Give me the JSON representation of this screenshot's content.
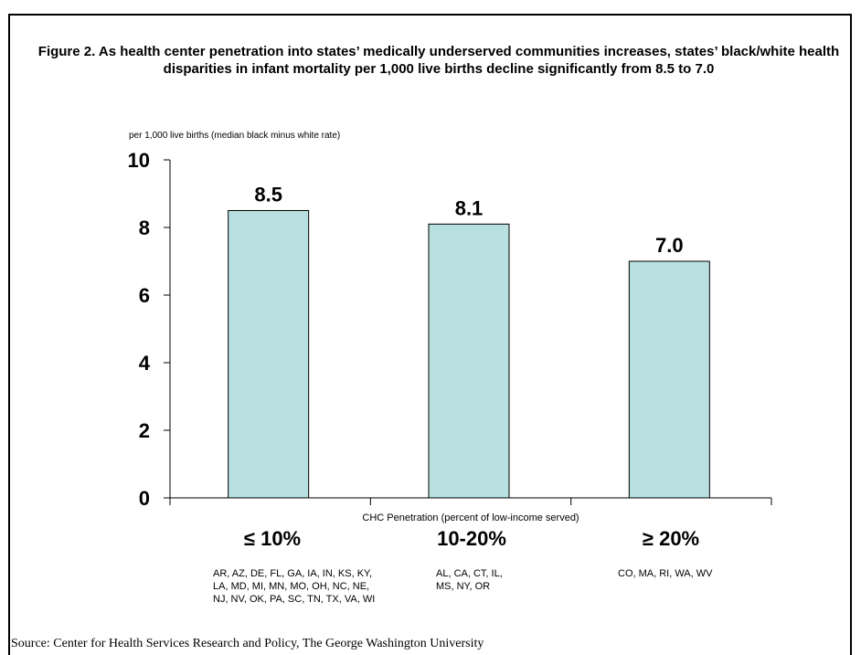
{
  "chart_data": {
    "type": "bar",
    "title": "Figure 2. As health center penetration into states’ medically underserved communities increases, states’ black/white health disparities in infant mortality per 1,000 live births decline significantly from 8.5 to 7.0",
    "ylabel": "per 1,000 live births (median black minus white rate)",
    "xlabel": "CHC Penetration (percent of low-income served)",
    "categories": [
      "≤ 10%",
      "10-20%",
      "≥ 20%"
    ],
    "values": [
      8.5,
      8.1,
      7.0
    ],
    "value_labels": [
      "8.5",
      "8.1",
      "7.0"
    ],
    "yticks": [
      "0",
      "2",
      "4",
      "6",
      "8",
      "10"
    ],
    "ylim": [
      0,
      10
    ],
    "grid": false,
    "bar_color": "#b8e0e0",
    "category_states": [
      [
        "AR, AZ, DE, FL, GA, IA, IN, KS, KY,",
        "LA, MD, MI, MN, MO, OH, NC, NE,",
        "NJ, NV, OK, PA, SC, TN, TX, VA, WI"
      ],
      [
        "AL, CA, CT, IL,",
        "MS, NY, OR"
      ],
      [
        "CO, MA, RI, WA, WV"
      ]
    ]
  },
  "source": "Source: Center for Health Services Research and Policy, The George Washington University"
}
